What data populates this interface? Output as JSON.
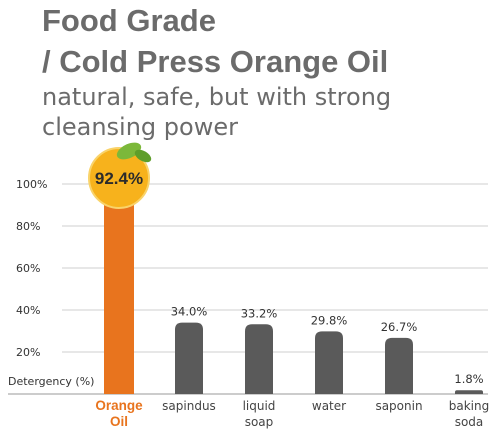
{
  "header": {
    "title_line1": "Food Grade",
    "title_line2": "/ Cold Press Orange Oil",
    "subtitle_line1": "natural, safe, but with strong",
    "subtitle_line2": "cleansing power"
  },
  "chart_data": {
    "type": "bar",
    "title": "",
    "ylabel": "Detergency (%)",
    "ylim": [
      0,
      100
    ],
    "yticks": [
      20,
      40,
      60,
      80,
      100
    ],
    "ytick_labels": [
      "20%",
      "40%",
      "60%",
      "80%",
      "100%"
    ],
    "grid": true,
    "categories": [
      [
        "Orange",
        "Oil"
      ],
      [
        "sapindus"
      ],
      [
        "liquid",
        "soap"
      ],
      [
        "water"
      ],
      [
        "saponin"
      ],
      [
        "baking",
        "soda"
      ]
    ],
    "values": [
      92.4,
      34.0,
      33.2,
      29.8,
      26.7,
      1.8
    ],
    "value_labels": [
      "92.4%",
      "34.0%",
      "33.2%",
      "29.8%",
      "26.7%",
      "1.8%"
    ],
    "highlight_index": 0,
    "colors": {
      "highlight": "#e8741e",
      "bar": "#5a5a5a",
      "grid": "#cfcfcf",
      "badge": "#f7b21c",
      "leaf": "#7cb83a"
    }
  }
}
